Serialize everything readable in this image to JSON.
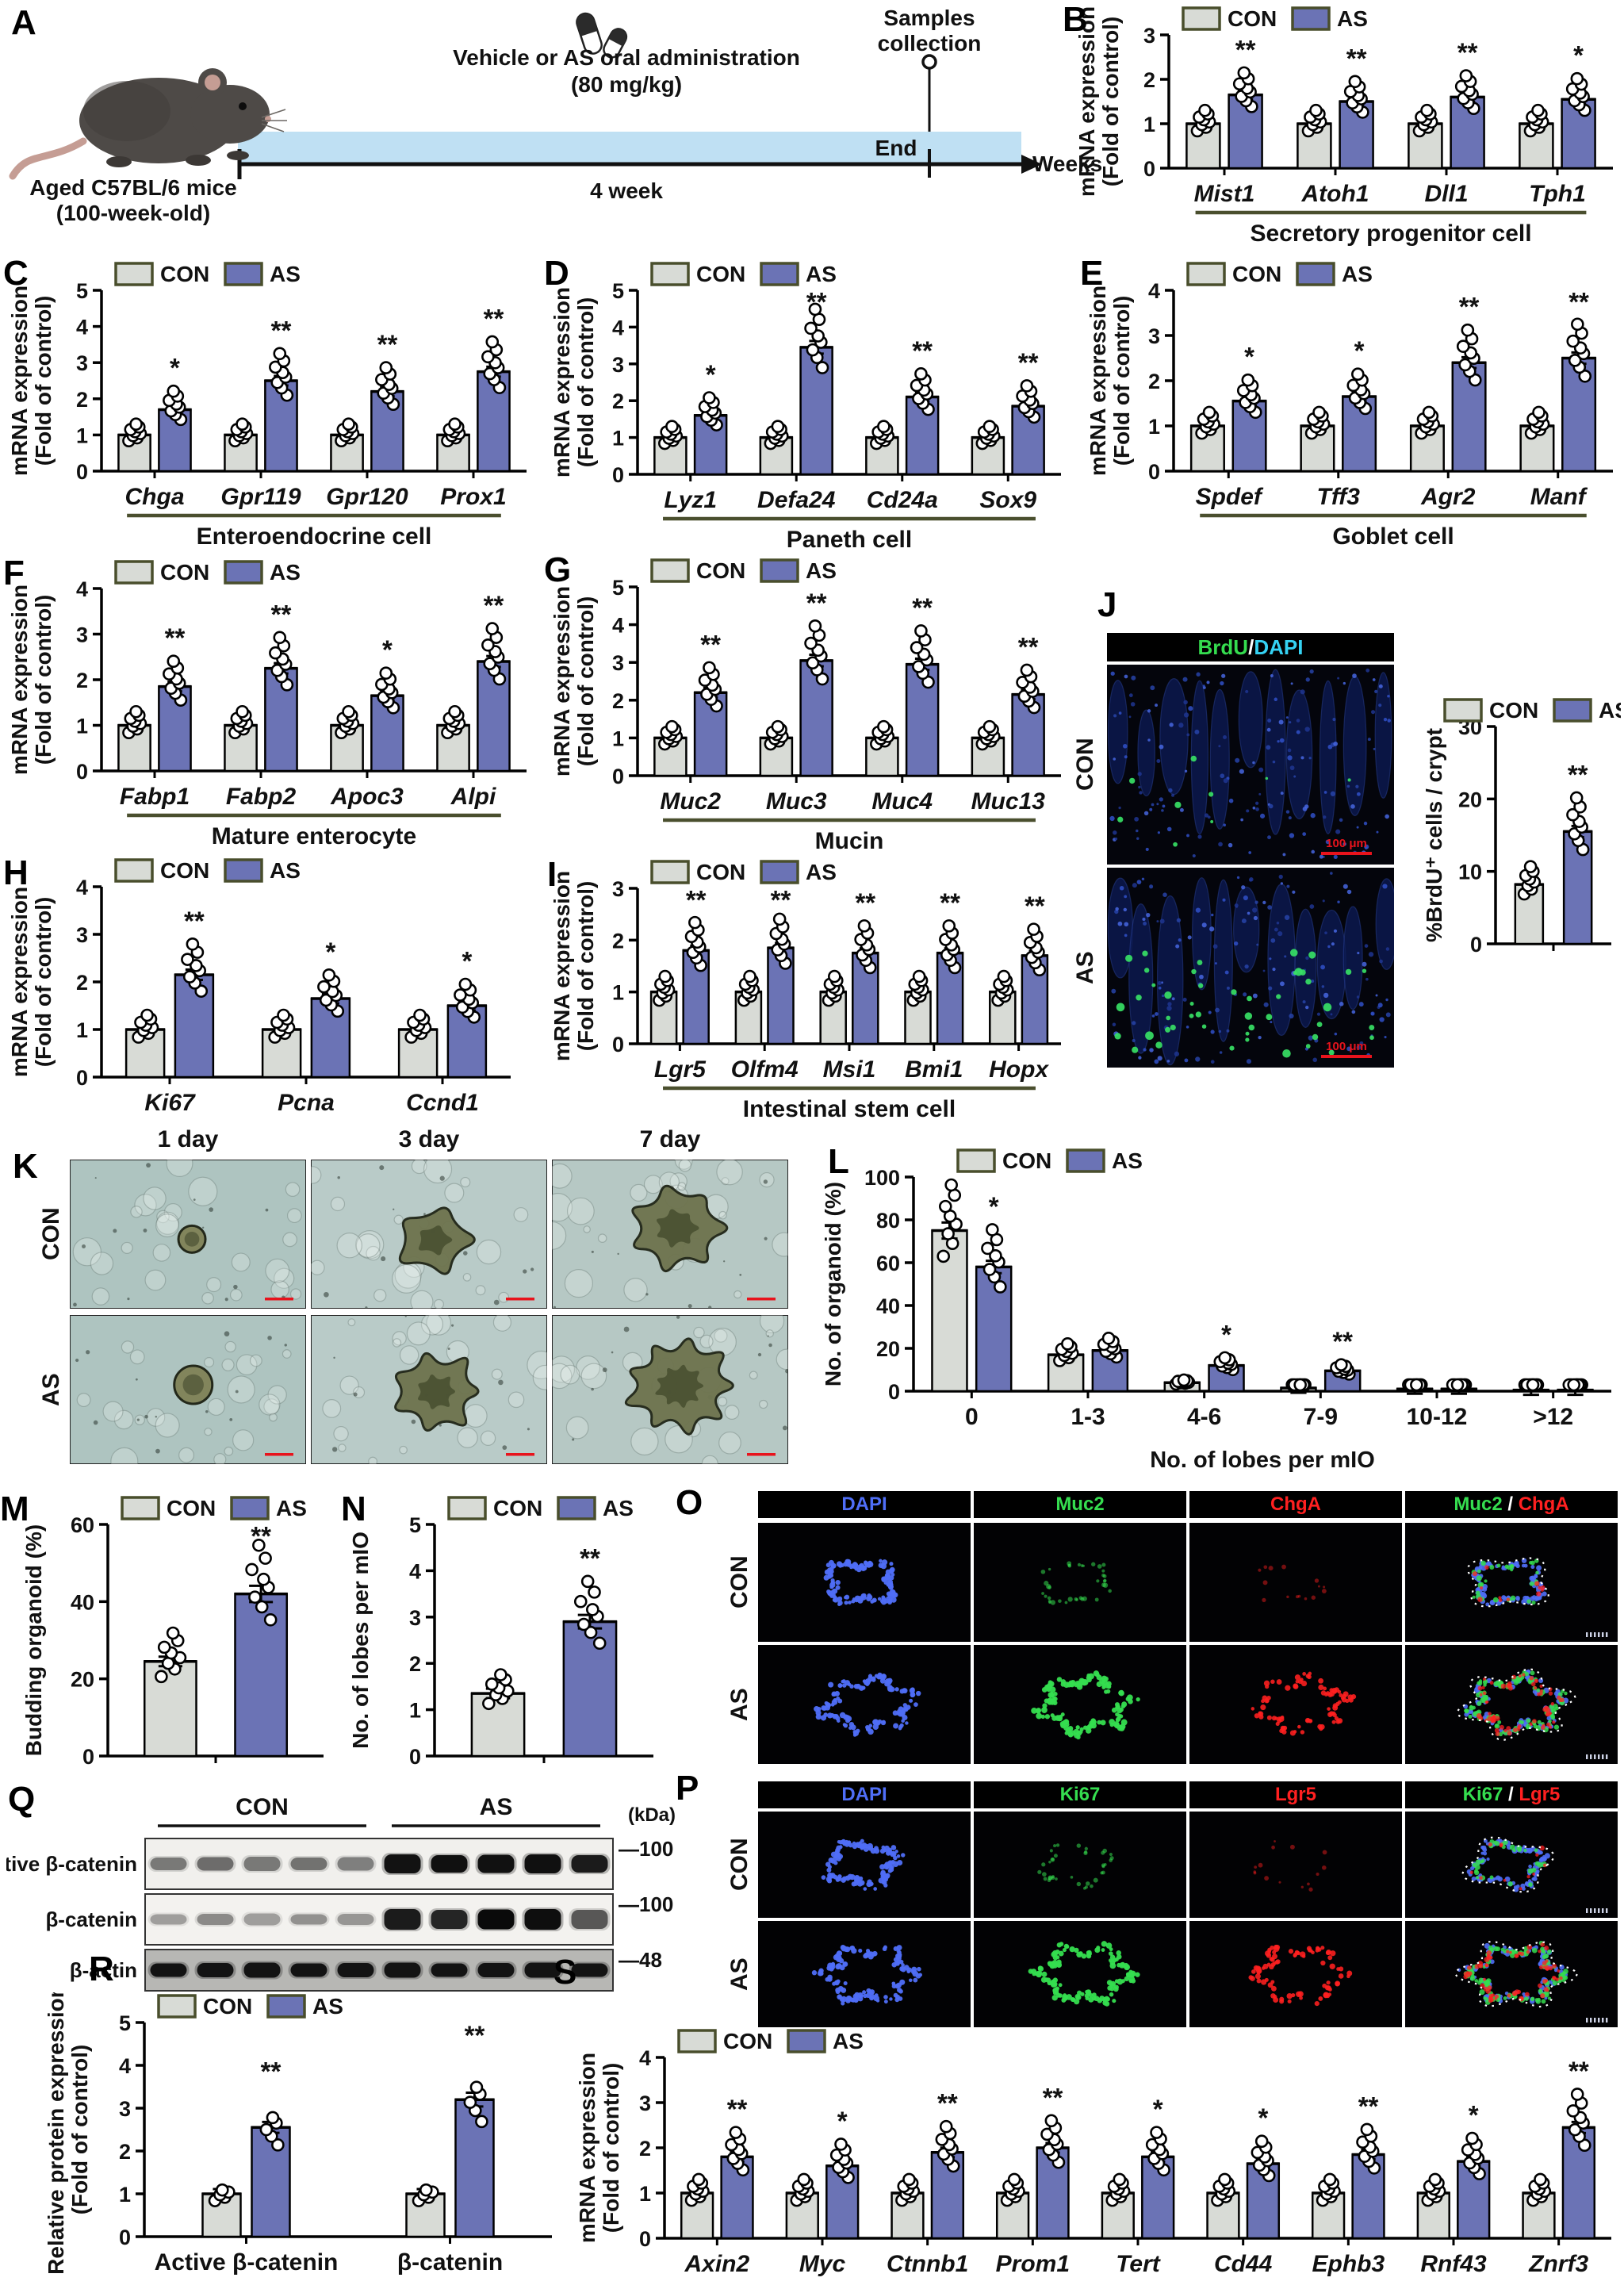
{
  "colors": {
    "con_fill": "#d8dbd6",
    "as_fill": "#6b73b5",
    "swatch_border": "#494e2c",
    "underline": "#4a4f2e",
    "axis": "#000000",
    "scalebar_red": "#e8131c",
    "dapi_blue": "#4f6ef7",
    "green": "#35dd4f",
    "red": "#ff2020",
    "cyan": "#35d2f2",
    "timeline_blue": "#bfe0f3",
    "blot_band": "#0a0a0a"
  },
  "legend": {
    "con": "CON",
    "as": "AS"
  },
  "panel_letters": {
    "A": "A",
    "B": "B",
    "C": "C",
    "D": "D",
    "E": "E",
    "F": "F",
    "G": "G",
    "H": "H",
    "I": "I",
    "J": "J",
    "K": "K",
    "L": "L",
    "M": "M",
    "N": "N",
    "O": "O",
    "P": "P",
    "Q": "Q",
    "R": "R",
    "S": "S"
  },
  "panelA": {
    "mouse_caption_line1": "Aged C57BL/6 mice",
    "mouse_caption_line2": "(100-week-old)",
    "treatment_line1": "Vehicle or AS oral administration",
    "treatment_line2": "(80 mg/kg)",
    "duration_label": "4 week",
    "end_label": "End",
    "weeks_label": "Weeks",
    "samples_line1": "Samples",
    "samples_line2": "collection"
  },
  "chart_data": [
    {
      "panel": "B",
      "type": "bar",
      "ylabel_lines": [
        "mRNA expression",
        "(Fold of control)"
      ],
      "ylim": [
        0,
        3
      ],
      "yticks": [
        0,
        1,
        2,
        3
      ],
      "categories": [
        "Mist1",
        "Atoh1",
        "Dll1",
        "Tph1"
      ],
      "series": [
        {
          "name": "CON",
          "values": [
            1.0,
            1.0,
            1.0,
            1.0
          ]
        },
        {
          "name": "AS",
          "values": [
            1.65,
            1.5,
            1.6,
            1.55
          ]
        }
      ],
      "sig": [
        "**",
        "**",
        "**",
        "*"
      ],
      "group_label": "Secretory progenitor cell",
      "italic_categories": true
    },
    {
      "panel": "C",
      "type": "bar",
      "ylabel_lines": [
        "mRNA expression",
        "(Fold of control)"
      ],
      "ylim": [
        0,
        5
      ],
      "yticks": [
        0,
        1,
        2,
        3,
        4,
        5
      ],
      "categories": [
        "Chga",
        "Gpr119",
        "Gpr120",
        "Prox1"
      ],
      "series": [
        {
          "name": "CON",
          "values": [
            1.0,
            1.0,
            1.0,
            1.0
          ]
        },
        {
          "name": "AS",
          "values": [
            1.7,
            2.5,
            2.2,
            2.75
          ]
        }
      ],
      "sig": [
        "*",
        "**",
        "**",
        "**"
      ],
      "group_label": "Enteroendocrine cell",
      "italic_categories": true
    },
    {
      "panel": "D",
      "type": "bar",
      "ylabel_lines": [
        "mRNA expression",
        "(Fold of control)"
      ],
      "ylim": [
        0,
        5
      ],
      "yticks": [
        0,
        1,
        2,
        3,
        4,
        5
      ],
      "categories": [
        "Lyz1",
        "Defa24",
        "Cd24a",
        "Sox9"
      ],
      "series": [
        {
          "name": "CON",
          "values": [
            1.0,
            1.0,
            1.0,
            1.0
          ]
        },
        {
          "name": "AS",
          "values": [
            1.6,
            3.45,
            2.1,
            1.85
          ]
        }
      ],
      "sig": [
        "*",
        "**",
        "**",
        "**"
      ],
      "group_label": "Paneth cell",
      "italic_categories": true
    },
    {
      "panel": "E",
      "type": "bar",
      "ylabel_lines": [
        "mRNA expression",
        "(Fold of control)"
      ],
      "ylim": [
        0,
        4
      ],
      "yticks": [
        0,
        1,
        2,
        3,
        4
      ],
      "categories": [
        "Spdef",
        "Tff3",
        "Agr2",
        "Manf"
      ],
      "series": [
        {
          "name": "CON",
          "values": [
            1.0,
            1.0,
            1.0,
            1.0
          ]
        },
        {
          "name": "AS",
          "values": [
            1.55,
            1.65,
            2.4,
            2.5
          ]
        }
      ],
      "sig": [
        "*",
        "*",
        "**",
        "**"
      ],
      "group_label": "Goblet cell",
      "italic_categories": true
    },
    {
      "panel": "F",
      "type": "bar",
      "ylabel_lines": [
        "mRNA expression",
        "(Fold of control)"
      ],
      "ylim": [
        0,
        4
      ],
      "yticks": [
        0,
        1,
        2,
        3,
        4
      ],
      "categories": [
        "Fabp1",
        "Fabp2",
        "Apoc3",
        "Alpi"
      ],
      "series": [
        {
          "name": "CON",
          "values": [
            1.0,
            1.0,
            1.0,
            1.0
          ]
        },
        {
          "name": "AS",
          "values": [
            1.85,
            2.25,
            1.65,
            2.4
          ]
        }
      ],
      "sig": [
        "**",
        "**",
        "*",
        "**"
      ],
      "group_label": "Mature enterocyte",
      "italic_categories": true
    },
    {
      "panel": "G",
      "type": "bar",
      "ylabel_lines": [
        "mRNA expression",
        "(Fold of control)"
      ],
      "ylim": [
        0,
        5
      ],
      "yticks": [
        0,
        1,
        2,
        3,
        4,
        5
      ],
      "categories": [
        "Muc2",
        "Muc3",
        "Muc4",
        "Muc13"
      ],
      "series": [
        {
          "name": "CON",
          "values": [
            1.0,
            1.0,
            1.0,
            1.0
          ]
        },
        {
          "name": "AS",
          "values": [
            2.2,
            3.05,
            2.95,
            2.15
          ]
        }
      ],
      "sig": [
        "**",
        "**",
        "**",
        "**"
      ],
      "group_label": "Mucin",
      "italic_categories": true
    },
    {
      "panel": "H",
      "type": "bar",
      "ylabel_lines": [
        "mRNA expression",
        "(Fold of control)"
      ],
      "ylim": [
        0,
        4
      ],
      "yticks": [
        0,
        1,
        2,
        3,
        4
      ],
      "categories": [
        "Ki67",
        "Pcna",
        "Ccnd1"
      ],
      "series": [
        {
          "name": "CON",
          "values": [
            1.0,
            1.0,
            1.0
          ]
        },
        {
          "name": "AS",
          "values": [
            2.15,
            1.65,
            1.5
          ]
        }
      ],
      "sig": [
        "**",
        "*",
        "*"
      ],
      "group_label": null,
      "italic_categories": true
    },
    {
      "panel": "I",
      "type": "bar",
      "ylabel_lines": [
        "mRNA expression",
        "(Fold of control)"
      ],
      "ylim": [
        0,
        3
      ],
      "yticks": [
        0,
        1,
        2,
        3
      ],
      "categories": [
        "Lgr5",
        "Olfm4",
        "Msi1",
        "Bmi1",
        "Hopx"
      ],
      "series": [
        {
          "name": "CON",
          "values": [
            1.0,
            1.0,
            1.0,
            1.0,
            1.0
          ]
        },
        {
          "name": "AS",
          "values": [
            1.8,
            1.85,
            1.75,
            1.75,
            1.7
          ]
        }
      ],
      "sig": [
        "**",
        "**",
        "**",
        "**",
        "**"
      ],
      "group_label": "Intestinal stem cell",
      "italic_categories": true
    },
    {
      "panel": "J",
      "type": "bar",
      "ylabel_lines": [
        "%BrdU⁺ cells / crypt"
      ],
      "ylim": [
        0,
        30
      ],
      "yticks": [
        0,
        10,
        20,
        30
      ],
      "categories": [
        ""
      ],
      "series": [
        {
          "name": "CON",
          "values": [
            8.2
          ]
        },
        {
          "name": "AS",
          "values": [
            15.5
          ]
        }
      ],
      "sig": [
        "**"
      ],
      "group_label": null,
      "italic_categories": false
    },
    {
      "panel": "L",
      "type": "bar",
      "ylabel_lines": [
        "No. of organoid (%)"
      ],
      "xlabel": "No. of lobes per mIO",
      "ylim": [
        0,
        100
      ],
      "yticks": [
        0,
        20,
        40,
        60,
        80,
        100
      ],
      "categories": [
        "0",
        "1-3",
        "4-6",
        "7-9",
        "10-12",
        ">12"
      ],
      "series": [
        {
          "name": "CON",
          "values": [
            75,
            17,
            4,
            1.5,
            1,
            0.5
          ]
        },
        {
          "name": "AS",
          "values": [
            58,
            19,
            12,
            9.5,
            1,
            0.5
          ]
        }
      ],
      "sig": [
        "*",
        "",
        "*",
        "**",
        "",
        ""
      ],
      "group_label": null,
      "italic_categories": false
    },
    {
      "panel": "M",
      "type": "bar",
      "ylabel_lines": [
        "Budding organoid (%)"
      ],
      "ylim": [
        0,
        60
      ],
      "yticks": [
        0,
        20,
        40,
        60
      ],
      "categories": [
        ""
      ],
      "series": [
        {
          "name": "CON",
          "values": [
            24.5
          ]
        },
        {
          "name": "AS",
          "values": [
            42
          ]
        }
      ],
      "sig": [
        "**"
      ],
      "group_label": null,
      "italic_categories": false
    },
    {
      "panel": "N",
      "type": "bar",
      "ylabel_lines": [
        "No. of lobes per mIO"
      ],
      "ylim": [
        0,
        5
      ],
      "yticks": [
        0,
        1,
        2,
        3,
        4,
        5
      ],
      "categories": [
        ""
      ],
      "series": [
        {
          "name": "CON",
          "values": [
            1.35
          ]
        },
        {
          "name": "AS",
          "values": [
            2.9
          ]
        }
      ],
      "sig": [
        "**"
      ],
      "group_label": null,
      "italic_categories": false
    },
    {
      "panel": "R",
      "type": "bar",
      "ylabel_lines": [
        "Relative protein expression",
        "(Fold of control)"
      ],
      "ylim": [
        0,
        5
      ],
      "yticks": [
        0,
        1,
        2,
        3,
        4,
        5
      ],
      "categories": [
        "Active β-catenin",
        "β-catenin"
      ],
      "series": [
        {
          "name": "CON",
          "values": [
            1.0,
            1.0
          ]
        },
        {
          "name": "AS",
          "values": [
            2.55,
            3.2
          ]
        }
      ],
      "sig": [
        "**",
        "**"
      ],
      "group_label": null,
      "italic_categories": false,
      "points_per_bar": 5
    },
    {
      "panel": "S",
      "type": "bar",
      "ylabel_lines": [
        "mRNA expression",
        "(Fold of control)"
      ],
      "ylim": [
        0,
        4
      ],
      "yticks": [
        0,
        1,
        2,
        3,
        4
      ],
      "categories": [
        "Axin2",
        "Myc",
        "Ctnnb1",
        "Prom1",
        "Tert",
        "Cd44",
        "Ephb3",
        "Rnf43",
        "Znrf3"
      ],
      "series": [
        {
          "name": "CON",
          "values": [
            1.0,
            1.0,
            1.0,
            1.0,
            1.0,
            1.0,
            1.0,
            1.0,
            1.0
          ]
        },
        {
          "name": "AS",
          "values": [
            1.8,
            1.6,
            1.9,
            2.0,
            1.8,
            1.65,
            1.85,
            1.7,
            2.45
          ]
        }
      ],
      "sig": [
        "**",
        "*",
        "**",
        "**",
        "*",
        "*",
        "**",
        "*",
        "**"
      ],
      "group_label": null,
      "italic_categories": true
    }
  ],
  "panelJ": {
    "title_parts": [
      {
        "text": "BrdU",
        "color": "#35dd4f"
      },
      {
        "text": "/",
        "color": "#ffffff"
      },
      {
        "text": "DAPI",
        "color": "#35d2f2"
      }
    ],
    "rows": [
      "CON",
      "AS"
    ],
    "scale_label": "100 μm"
  },
  "panelK": {
    "columns": [
      "1 day",
      "3 day",
      "7 day"
    ],
    "rows": [
      "CON",
      "AS"
    ]
  },
  "panelO": {
    "headers": [
      [
        {
          "text": "DAPI",
          "color": "#4f6ef7"
        }
      ],
      [
        {
          "text": "Muc2",
          "color": "#35dd4f"
        }
      ],
      [
        {
          "text": "ChgA",
          "color": "#ff2020"
        }
      ],
      [
        {
          "text": "Muc2",
          "color": "#35dd4f"
        },
        {
          "text": " / ",
          "color": "#ffffff"
        },
        {
          "text": "ChgA",
          "color": "#ff2020"
        }
      ]
    ],
    "rows": [
      "CON",
      "AS"
    ]
  },
  "panelP": {
    "headers": [
      [
        {
          "text": "DAPI",
          "color": "#4f6ef7"
        }
      ],
      [
        {
          "text": "Ki67",
          "color": "#35dd4f"
        }
      ],
      [
        {
          "text": "Lgr5",
          "color": "#ff2020"
        }
      ],
      [
        {
          "text": "Ki67",
          "color": "#35dd4f"
        },
        {
          "text": " / ",
          "color": "#ffffff"
        },
        {
          "text": "Lgr5",
          "color": "#ff2020"
        }
      ]
    ],
    "rows": [
      "CON",
      "AS"
    ]
  },
  "panelQ": {
    "groups": [
      "CON",
      "AS"
    ],
    "kda_label": "(kDa)",
    "rows": [
      {
        "label": "Active β-catenin",
        "marker": "100",
        "con_levels": [
          0.45,
          0.5,
          0.45,
          0.48,
          0.42
        ],
        "as_levels": [
          0.95,
          0.97,
          0.96,
          0.97,
          0.9
        ]
      },
      {
        "label": "β-catenin",
        "marker": "100",
        "con_levels": [
          0.3,
          0.38,
          0.3,
          0.35,
          0.33
        ],
        "as_levels": [
          0.9,
          0.85,
          1.0,
          0.98,
          0.6
        ]
      },
      {
        "label": "β-actin",
        "marker": "48",
        "con_levels": [
          0.93,
          0.93,
          0.93,
          0.93,
          0.93
        ],
        "as_levels": [
          0.93,
          0.93,
          0.93,
          0.93,
          0.93
        ]
      }
    ]
  }
}
